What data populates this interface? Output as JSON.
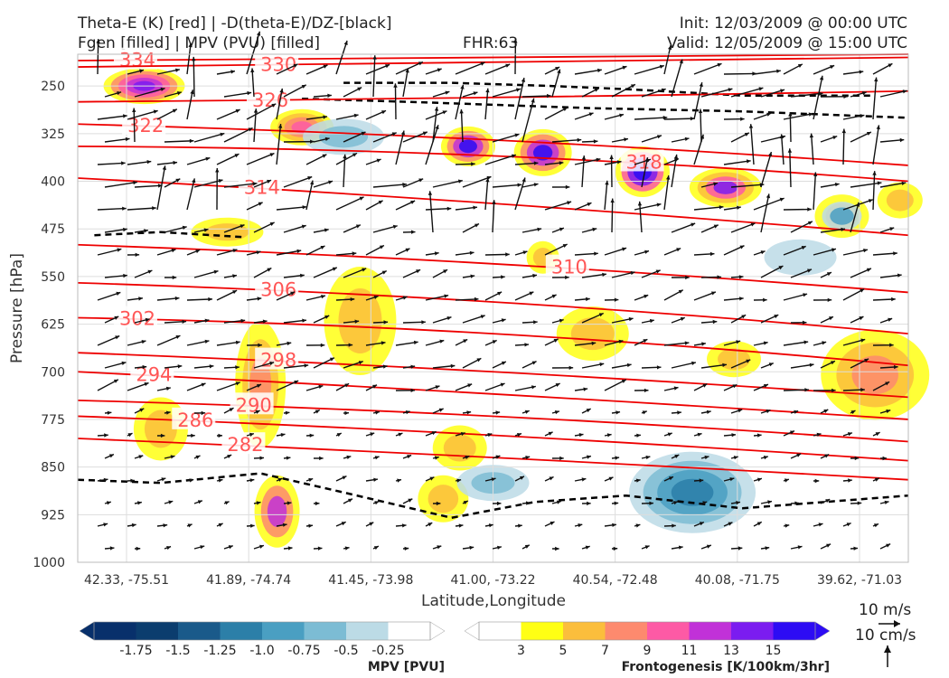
{
  "header": {
    "left_line1": "Theta-E (K) [red] | -D(theta-E)/DZ-[black]",
    "left_line2": "Fgen [filled] | MPV (PVU) [filled]",
    "center": "FHR:63",
    "right_line1": "Init: 12/03/2009 @ 00:00 UTC",
    "right_line2": "Valid: 12/05/2009 @ 15:00 UTC"
  },
  "chart_data": {
    "type": "cross-section",
    "xlabel": "Latitude,Longitude",
    "ylabel": "Pressure [hPa]",
    "x_ticks": [
      "42.33, -75.51",
      "41.89, -74.74",
      "41.45, -73.98",
      "41.00, -73.22",
      "40.54, -72.48",
      "40.08, -71.75",
      "39.62, -71.03"
    ],
    "y_ticks": [
      250,
      325,
      400,
      475,
      550,
      625,
      700,
      775,
      850,
      925,
      1000
    ],
    "ylim": [
      1000,
      200
    ],
    "theta_e_contours": [
      {
        "value": 334,
        "label": "334",
        "pressure": [
          210,
          205,
          200
        ]
      },
      {
        "value": 330,
        "label": "330",
        "pressure": [
          220,
          212,
          205
        ]
      },
      {
        "value": 326,
        "label": "326",
        "pressure": [
          275,
          268,
          258
        ]
      },
      {
        "value": 322,
        "label": "322",
        "pressure": [
          310,
          335,
          375
        ]
      },
      {
        "value": 318,
        "label": "318",
        "pressure": [
          345,
          360,
          400
        ]
      },
      {
        "value": 314,
        "label": "314",
        "pressure": [
          395,
          435,
          485
        ]
      },
      {
        "value": 310,
        "label": "310",
        "pressure": [
          500,
          530,
          575
        ]
      },
      {
        "value": 306,
        "label": "306",
        "pressure": [
          560,
          590,
          640
        ]
      },
      {
        "value": 302,
        "label": "302",
        "pressure": [
          615,
          640,
          690
        ]
      },
      {
        "value": 298,
        "label": "298",
        "pressure": [
          670,
          700,
          740
        ]
      },
      {
        "value": 294,
        "label": "294",
        "pressure": [
          700,
          735,
          775
        ]
      },
      {
        "value": 290,
        "label": "290",
        "pressure": [
          745,
          770,
          810
        ]
      },
      {
        "value": 286,
        "label": "286",
        "pressure": [
          770,
          800,
          840
        ]
      },
      {
        "value": 282,
        "label": "282",
        "pressure": [
          805,
          835,
          870
        ]
      }
    ],
    "mpv_colorbar": {
      "title": "MPV [PVU]",
      "ticks": [
        "-1.75",
        "-1.5",
        "-1.25",
        "-1.0",
        "-0.75",
        "-0.5",
        "-0.25"
      ],
      "colors": [
        "#08306b",
        "#0b3d6e",
        "#1a5a8a",
        "#2c7fa8",
        "#4a9fc2",
        "#7cbcd4",
        "#bcdbe6",
        "#ffffff"
      ]
    },
    "fgen_colorbar": {
      "title": "Frontogenesis [K/100km/3hr]",
      "ticks": [
        "3",
        "5",
        "7",
        "9",
        "11",
        "13",
        "15"
      ],
      "colors": [
        "#ffffff",
        "#ffff14",
        "#fbbe3c",
        "#fd8a6e",
        "#fd5aa5",
        "#c131d8",
        "#7b1cf0",
        "#2d0cf4"
      ]
    },
    "wind_key": {
      "horizontal": "10 m/s",
      "vertical": "10 cm/s"
    },
    "grid": true
  }
}
